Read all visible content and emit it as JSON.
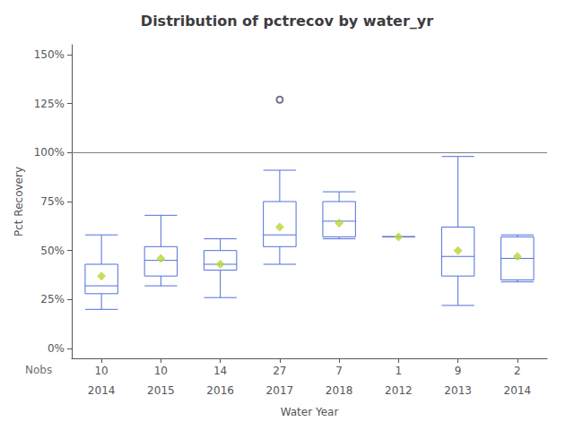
{
  "chart_data": {
    "type": "boxplot",
    "title": "Distribution of pctrecov by water_yr",
    "xlabel": "Water Year",
    "ylabel": "Pct Recovery",
    "categories": [
      "2014",
      "2015",
      "2016",
      "2017",
      "2018",
      "2012",
      "2013",
      "2014"
    ],
    "nobs_label": "Nobs",
    "nobs": [
      10,
      10,
      14,
      27,
      7,
      1,
      9,
      2
    ],
    "boxes": [
      {
        "min": 20,
        "q1": 28,
        "median": 32,
        "q3": 43,
        "max": 58,
        "fliers": [],
        "mean": 37
      },
      {
        "min": 32,
        "q1": 37,
        "median": 45,
        "q3": 52,
        "max": 68,
        "fliers": [],
        "mean": 46
      },
      {
        "min": 26,
        "q1": 40,
        "median": 43,
        "q3": 50,
        "max": 56,
        "fliers": [],
        "mean": 43
      },
      {
        "min": 43,
        "q1": 52,
        "median": 58,
        "q3": 75,
        "max": 91,
        "fliers": [
          127
        ],
        "mean": 62
      },
      {
        "min": 56,
        "q1": 57,
        "median": 65,
        "q3": 75,
        "max": 80,
        "fliers": [],
        "mean": 64
      },
      {
        "min": 57,
        "q1": 57,
        "median": 57,
        "q3": 57,
        "max": 57,
        "fliers": [],
        "mean": 57
      },
      {
        "min": 22,
        "q1": 37,
        "median": 47,
        "q3": 62,
        "max": 98,
        "fliers": [],
        "mean": 50
      },
      {
        "min": 34,
        "q1": 35,
        "median": 46,
        "q3": 57,
        "max": 58,
        "fliers": [],
        "mean": 47
      }
    ],
    "ylim": [
      -5,
      155
    ],
    "yticks": [
      {
        "value": 0,
        "label": "0%"
      },
      {
        "value": 25,
        "label": "25%"
      },
      {
        "value": 50,
        "label": "50%"
      },
      {
        "value": 75,
        "label": "75%"
      },
      {
        "value": 100,
        "label": "100%"
      },
      {
        "value": 125,
        "label": "125%"
      },
      {
        "value": 150,
        "label": "150%"
      }
    ],
    "reference_line": 100,
    "grid": false
  }
}
